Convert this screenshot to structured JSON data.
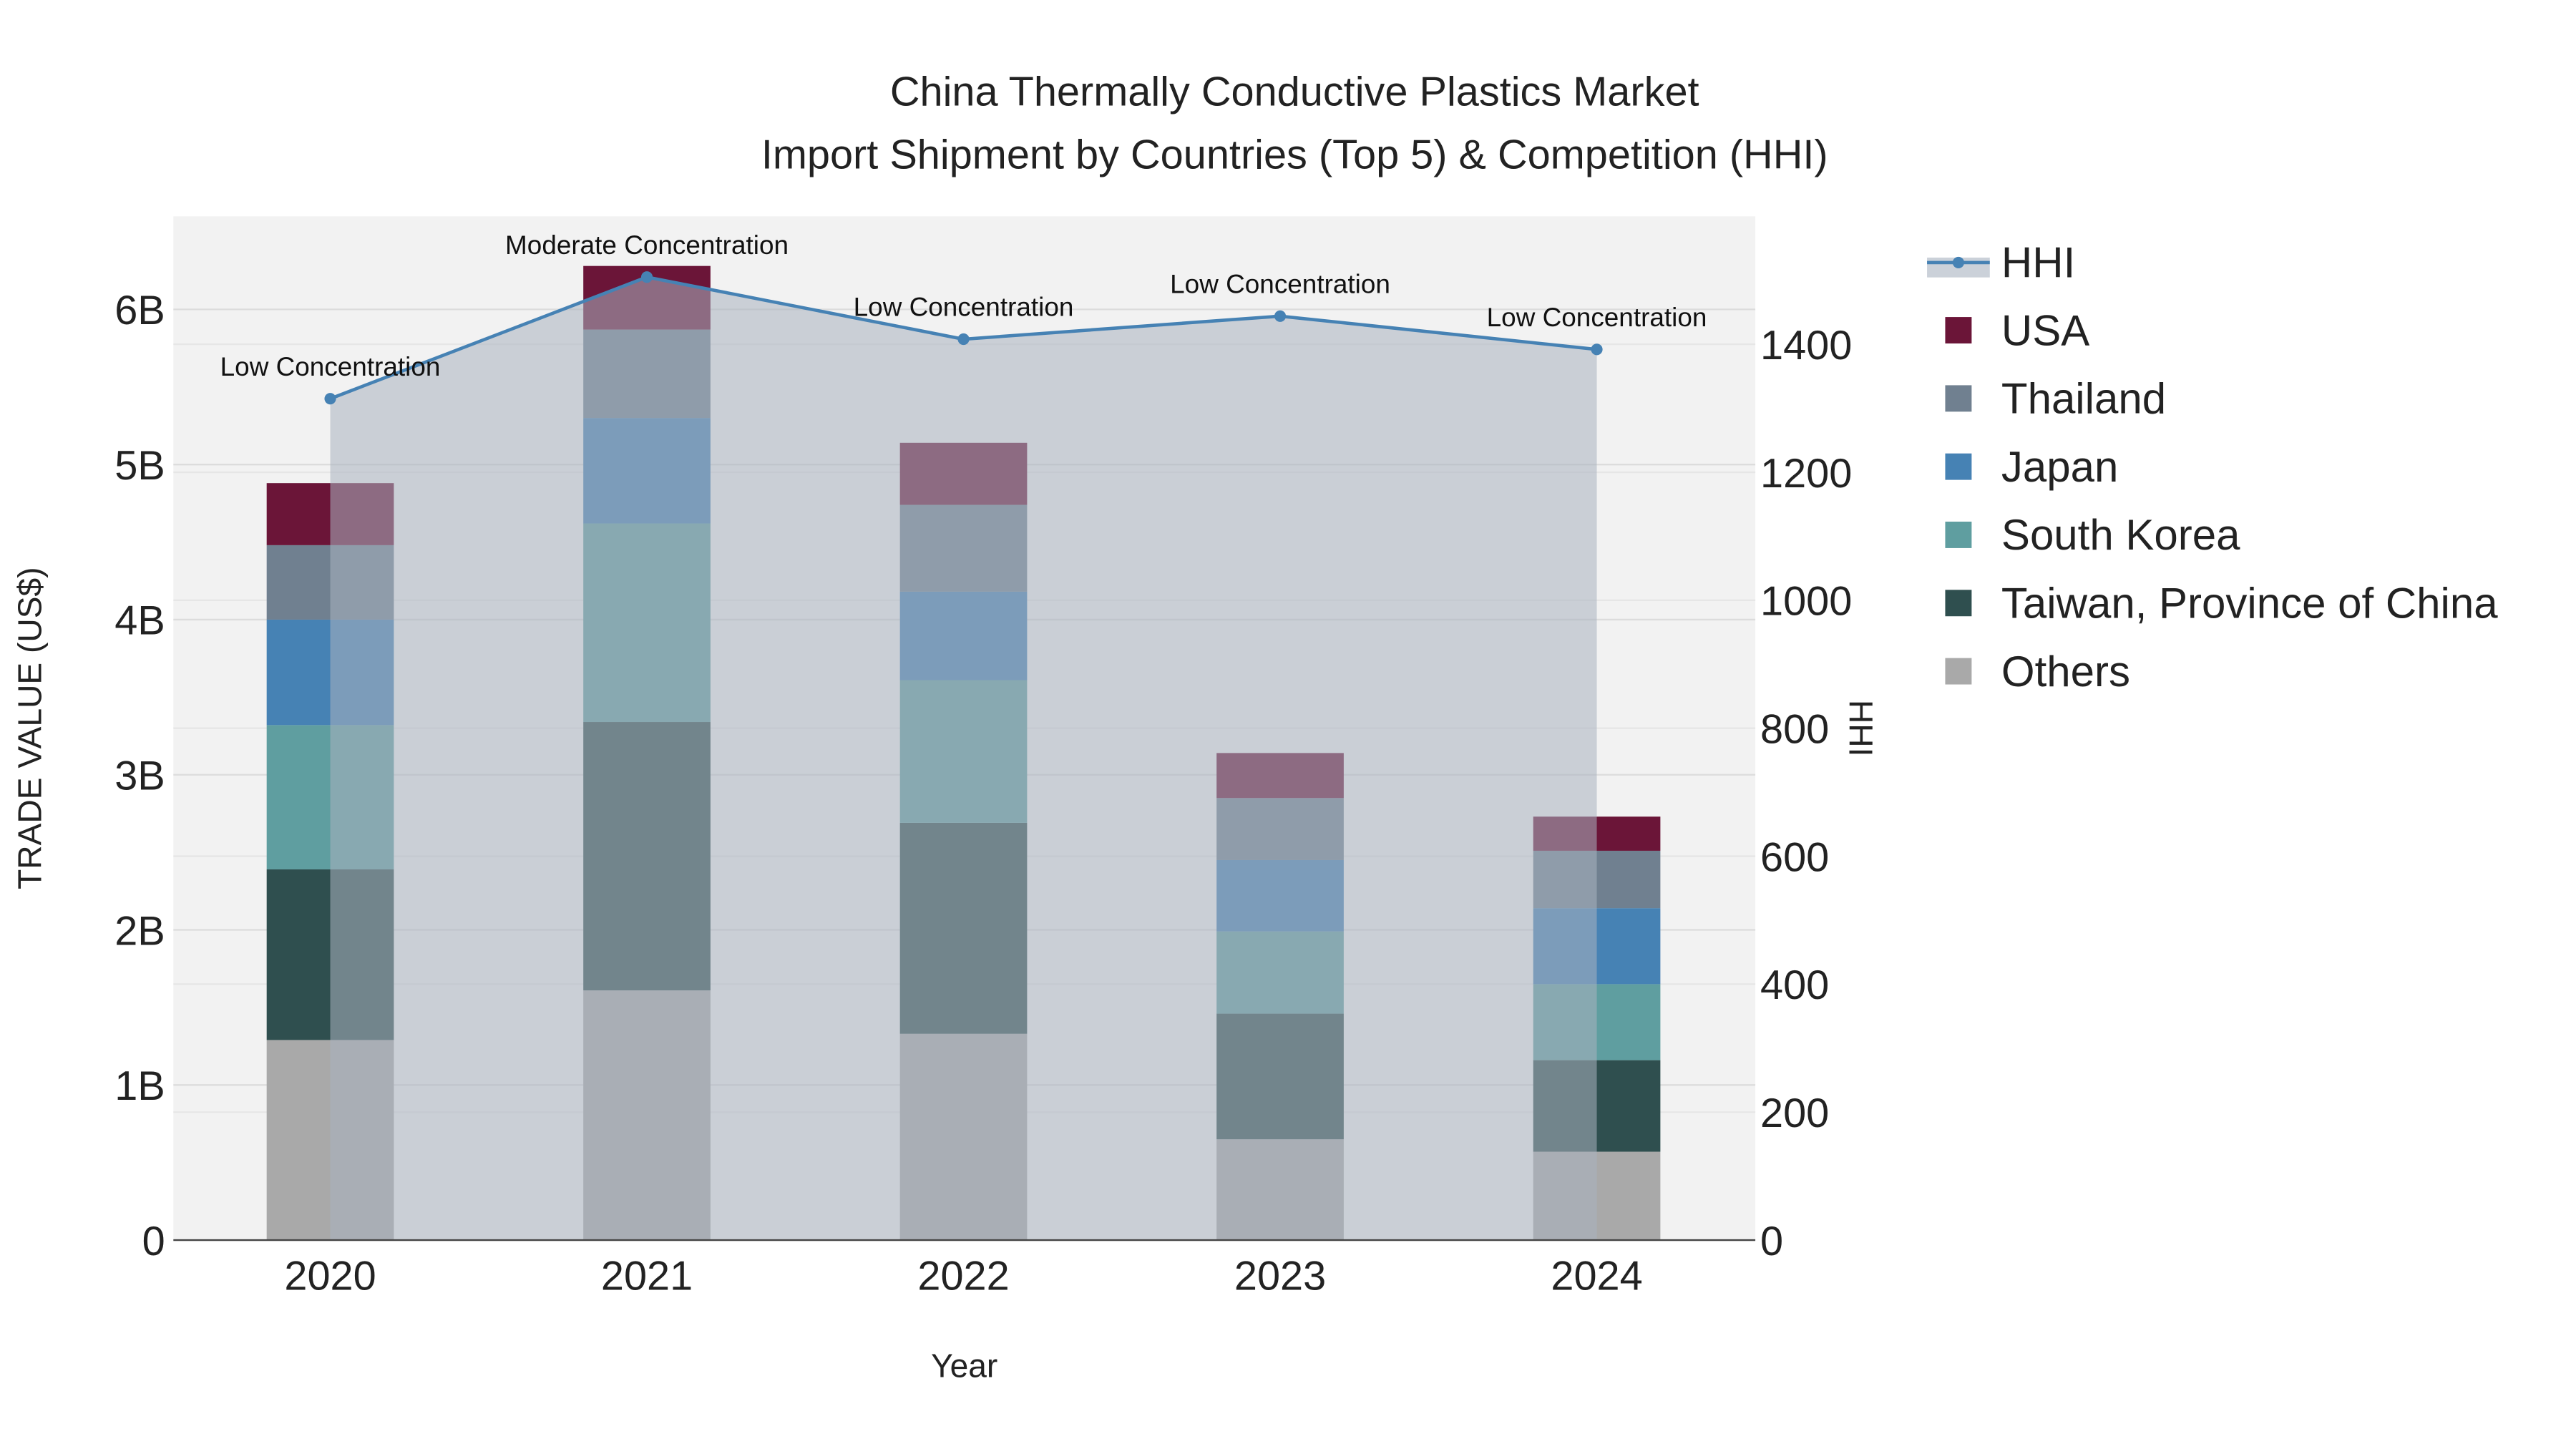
{
  "chart_data": {
    "type": "bar",
    "title_line1": "China Thermally Conductive Plastics Market",
    "title_line2": "Import Shipment by Countries (Top 5) & Competition (HHI)",
    "xlabel": "Year",
    "ylabel": "TRADE VALUE (US$)",
    "y2label": "HHI",
    "categories": [
      "2020",
      "2021",
      "2022",
      "2023",
      "2024"
    ],
    "ylim": [
      0,
      6.6
    ],
    "yticks": [
      {
        "v": 0,
        "label": "0"
      },
      {
        "v": 1,
        "label": "1B"
      },
      {
        "v": 2,
        "label": "2B"
      },
      {
        "v": 3,
        "label": "3B"
      },
      {
        "v": 4,
        "label": "4B"
      },
      {
        "v": 5,
        "label": "5B"
      },
      {
        "v": 6,
        "label": "6B"
      }
    ],
    "y2lim": [
      0,
      1600
    ],
    "y2ticks": [
      0,
      200,
      400,
      600,
      800,
      1000,
      1200,
      1400
    ],
    "units": "billion US$",
    "series": [
      {
        "name": "Others",
        "color": "#a9a9a9",
        "values": [
          1.29,
          1.61,
          1.33,
          0.65,
          0.57
        ]
      },
      {
        "name": "Taiwan, Province of China",
        "color": "#2f4f4f",
        "values": [
          1.1,
          1.73,
          1.36,
          0.81,
          0.59
        ]
      },
      {
        "name": "South Korea",
        "color": "#5f9ea0",
        "values": [
          0.93,
          1.28,
          0.92,
          0.53,
          0.49
        ]
      },
      {
        "name": "Japan",
        "color": "#4682b4",
        "values": [
          0.68,
          0.68,
          0.57,
          0.46,
          0.49
        ]
      },
      {
        "name": "Thailand",
        "color": "#708090",
        "values": [
          0.48,
          0.57,
          0.56,
          0.4,
          0.37
        ]
      },
      {
        "name": "USA",
        "color": "#6b1538",
        "values": [
          0.4,
          0.41,
          0.4,
          0.29,
          0.22
        ]
      }
    ],
    "hhi": {
      "name": "HHI",
      "color": "#4682b4",
      "values": [
        1315,
        1505,
        1408,
        1444,
        1392
      ],
      "annotations": [
        "Low Concentration",
        "Moderate Concentration",
        "Low Concentration",
        "Low Concentration",
        "Low Concentration"
      ]
    },
    "legend": [
      "HHI",
      "USA",
      "Thailand",
      "Japan",
      "South Korea",
      "Taiwan, Province of China",
      "Others"
    ],
    "legend_position": "right",
    "grid": true
  }
}
